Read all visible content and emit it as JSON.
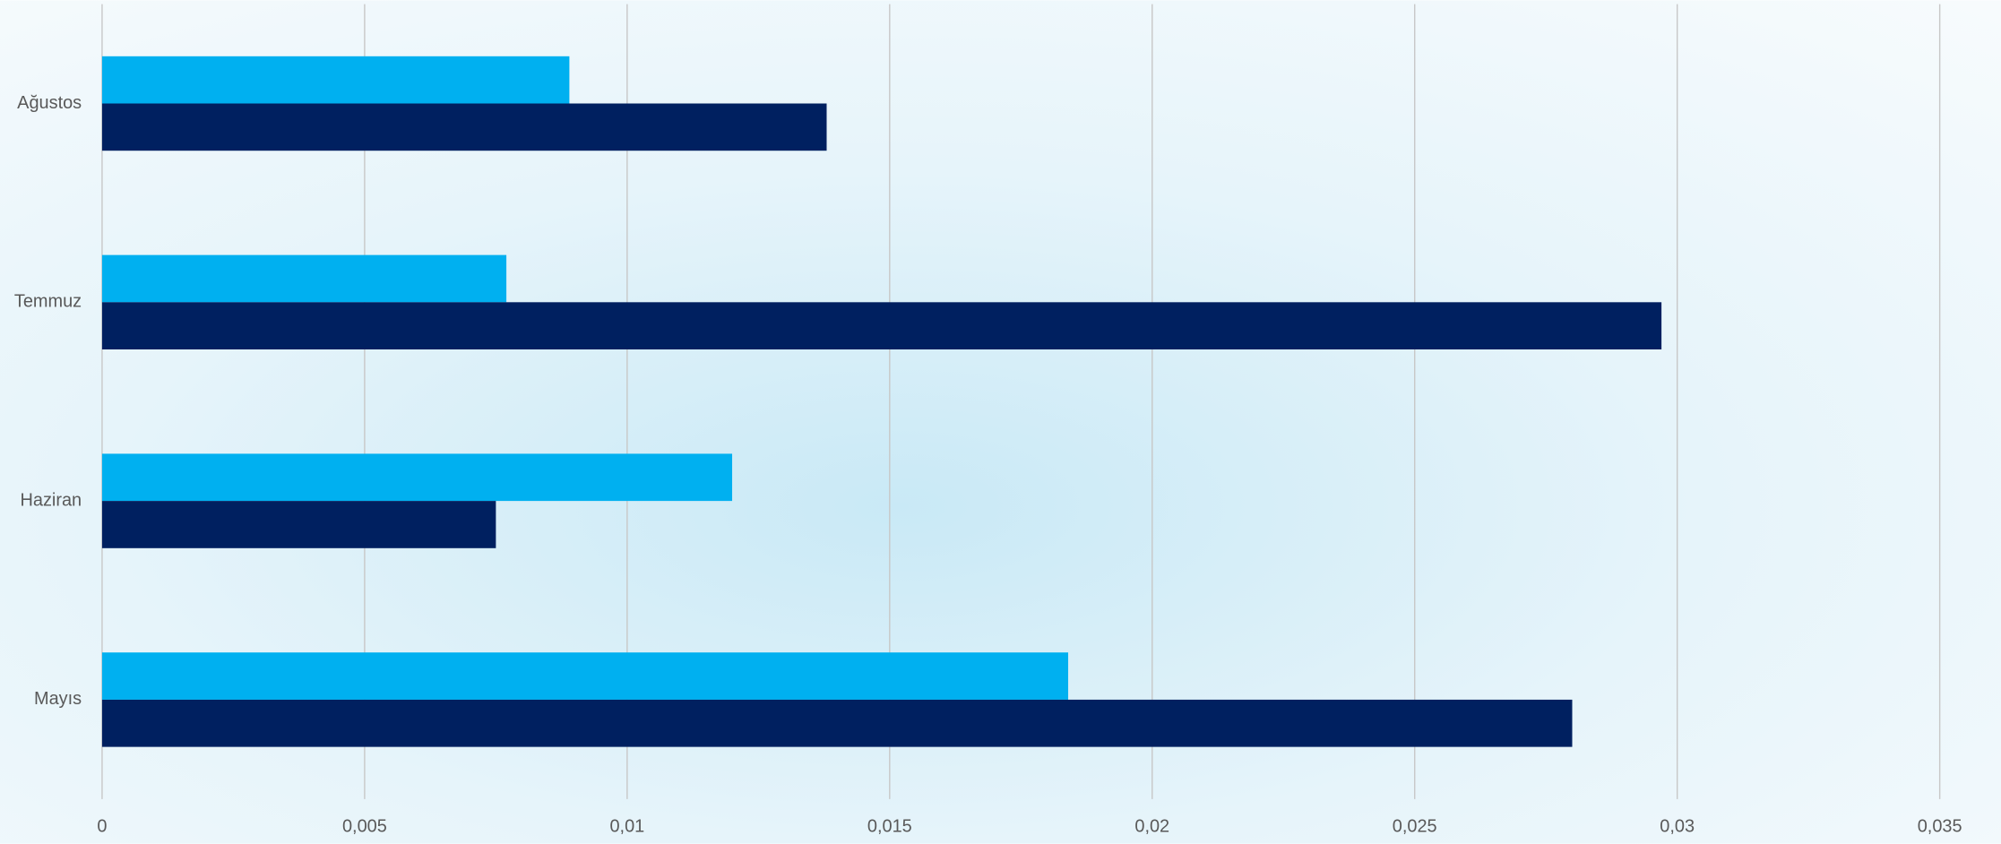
{
  "chart_data": {
    "type": "hbar",
    "categories": [
      "Mayıs",
      "Haziran",
      "Temmuz",
      "Ağustos"
    ],
    "series": [
      {
        "color": "#00b0f0",
        "values": [
          0.0184,
          0.012,
          0.0077,
          0.0089
        ]
      },
      {
        "color": "#002060",
        "values": [
          0.028,
          0.0075,
          0.0297,
          0.0138
        ]
      }
    ],
    "xlim": [
      0,
      0.035
    ],
    "xticks": [
      0,
      {
        "value": 0.005,
        "label": "0,005"
      },
      {
        "value": 0.01,
        "label": "0,01"
      },
      {
        "value": 0.015,
        "label": "0,015"
      },
      {
        "value": 0.02,
        "label": "0,02"
      },
      {
        "value": 0.025,
        "label": "0,025"
      },
      {
        "value": 0.03,
        "label": "0,03"
      },
      {
        "value": 0.035,
        "label": "0,035"
      }
    ],
    "grid": true
  }
}
